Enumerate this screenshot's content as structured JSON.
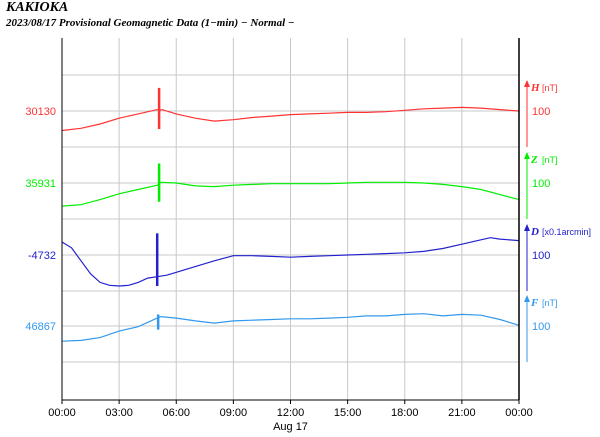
{
  "header": {
    "station": "KAKIOKA",
    "subtitle": "2023/08/17  Provisional Geomagnetic Data (1−min)  − Normal −"
  },
  "chart_data": {
    "type": "line",
    "title": "2023/08/17  Provisional Geomagnetic Data (1−min)  − Normal −",
    "x_ticks": [
      "00:00",
      "03:00",
      "06:00",
      "09:00",
      "12:00",
      "15:00",
      "18:00",
      "21:00",
      "00:00"
    ],
    "x_hours": [
      0,
      3,
      6,
      9,
      12,
      15,
      18,
      21,
      24
    ],
    "xlabel": "Aug 17",
    "xlim": [
      0,
      24
    ],
    "grid": true,
    "scale_label": "100",
    "series": [
      {
        "name": "H",
        "unit": "[nT]",
        "color": "#ff3333",
        "baseline_label": "30130",
        "x": [
          0,
          1,
          2,
          3,
          4,
          5,
          5.15,
          5.25,
          6,
          7,
          8,
          9,
          10,
          11,
          12,
          13,
          14,
          15,
          16,
          17,
          18,
          19,
          20,
          21,
          22,
          23,
          24
        ],
        "y": [
          30103,
          30106,
          30112,
          30120,
          30126,
          30132,
          30131,
          30132,
          30126,
          30120,
          30116,
          30118,
          30121,
          30123,
          30125,
          30126,
          30127,
          30128,
          30128,
          30129,
          30131,
          30133,
          30134,
          30135,
          30134,
          30132,
          30130
        ],
        "spike_x": 5.1,
        "spike_range": [
          30105,
          30162
        ]
      },
      {
        "name": "Z",
        "unit": "[nT]",
        "color": "#00ee00",
        "baseline_label": "35931",
        "x": [
          0,
          1,
          2,
          3,
          4,
          5,
          5.2,
          6,
          7,
          8,
          9,
          10,
          11,
          12,
          13,
          14,
          15,
          16,
          17,
          18,
          19,
          20,
          21,
          22,
          23,
          24
        ],
        "y": [
          35899,
          35901,
          35908,
          35916,
          35922,
          35928,
          35932,
          35931,
          35927,
          35926,
          35928,
          35929,
          35930,
          35930,
          35930,
          35930,
          35931,
          35932,
          35932,
          35932,
          35931,
          35929,
          35926,
          35922,
          35915,
          35908
        ],
        "spike_x": 5.1,
        "spike_range": [
          35905,
          35958
        ]
      },
      {
        "name": "D",
        "unit": "[x0.1arcmin]",
        "color": "#2222cc",
        "baseline_label": "-4732",
        "x": [
          0,
          0.5,
          1,
          1.5,
          2,
          2.5,
          3,
          3.5,
          4,
          4.5,
          5,
          5.5,
          6,
          7,
          8,
          9,
          10,
          11,
          12,
          13,
          14,
          15,
          16,
          17,
          18,
          19,
          20,
          21,
          22,
          22.5,
          23,
          24
        ],
        "y": [
          -4714,
          -4722,
          -4740,
          -4758,
          -4770,
          -4774,
          -4775,
          -4774,
          -4770,
          -4764,
          -4762,
          -4760,
          -4756,
          -4748,
          -4740,
          -4733,
          -4733,
          -4734,
          -4735,
          -4734,
          -4733,
          -4732,
          -4731,
          -4730,
          -4729,
          -4727,
          -4723,
          -4717,
          -4711,
          -4708,
          -4710,
          -4712
        ],
        "spike_x": 5.0,
        "spike_range": [
          -4775,
          -4702
        ]
      },
      {
        "name": "F",
        "unit": "[nT]",
        "color": "#3399ee",
        "baseline_label": "46867",
        "x": [
          0,
          1,
          2,
          3,
          4,
          5,
          5.2,
          6,
          7,
          8,
          9,
          10,
          11,
          12,
          13,
          14,
          15,
          16,
          17,
          18,
          19,
          20,
          21,
          22,
          23,
          24
        ],
        "y": [
          46846,
          46847,
          46851,
          46860,
          46866,
          46878,
          46880,
          46878,
          46874,
          46871,
          46874,
          46875,
          46876,
          46877,
          46877,
          46878,
          46879,
          46881,
          46881,
          46883,
          46884,
          46881,
          46883,
          46882,
          46876,
          46868
        ],
        "spike_x": 5.05,
        "spike_range": [
          46862,
          46883
        ]
      }
    ]
  }
}
